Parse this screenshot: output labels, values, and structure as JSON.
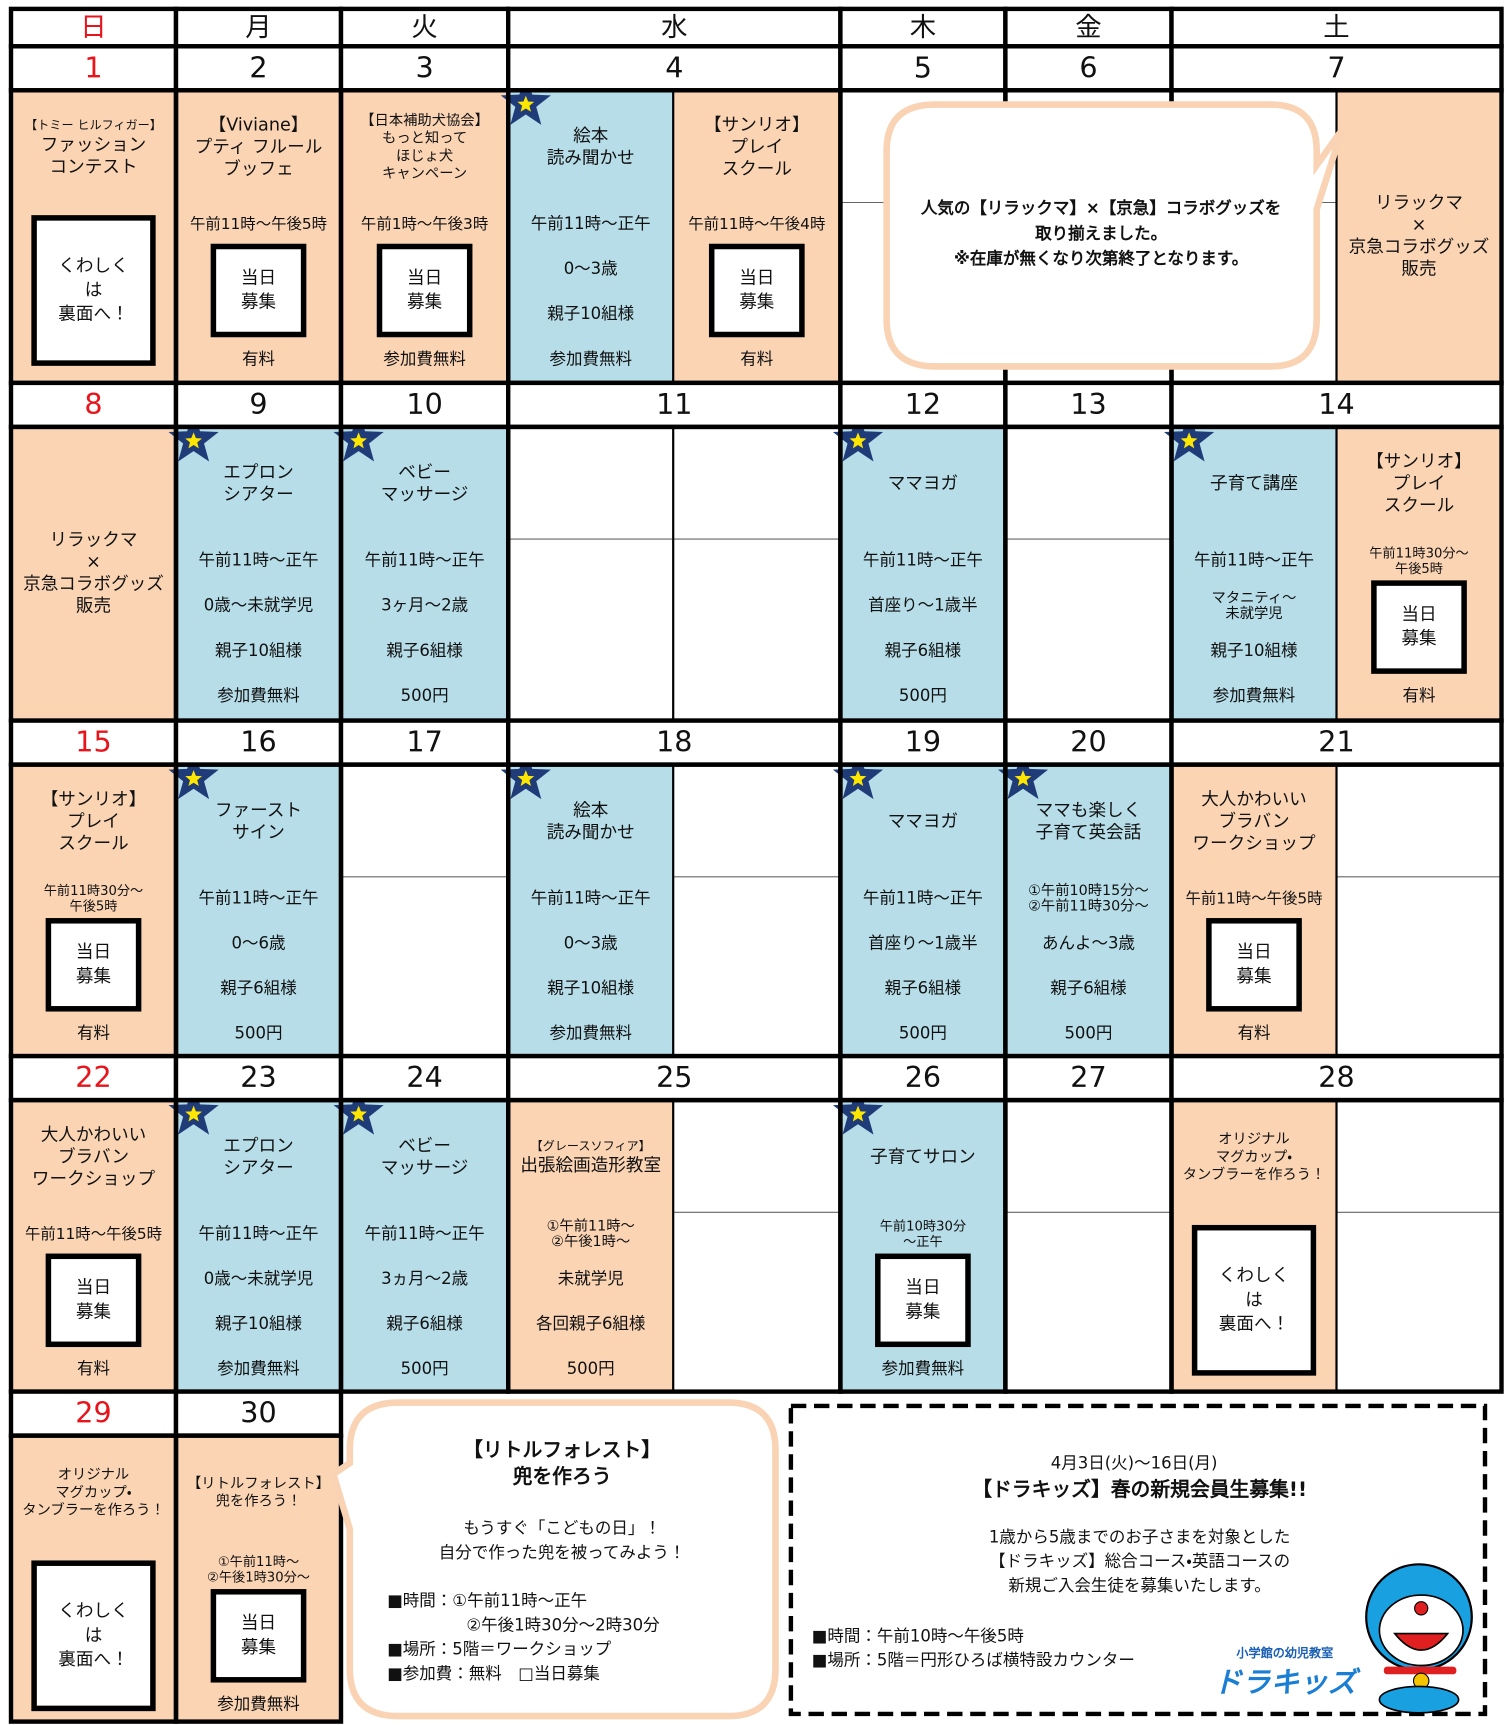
{
  "days": [
    "日",
    "月",
    "火",
    "水",
    "木",
    "金",
    "土"
  ],
  "weeks": [
    {
      "dates": [
        1,
        2,
        3,
        4,
        5,
        6,
        7
      ],
      "events": [
        {
          "slot": 0,
          "color": "#fbd4b4",
          "sub": "【トミー ヒルフィガー】",
          "title": [
            "ファッション",
            "コンテスト"
          ],
          "details": [],
          "box": [
            "くわしく",
            "は",
            "裏面へ！"
          ]
        },
        {
          "slot": 1,
          "color": "#fbd4b4",
          "title": [
            "【Viviane】",
            "プティ フルール",
            "ブッフェ"
          ],
          "details": [
            "午前11時～午後5時",
            "有料"
          ],
          "box": [
            "当日",
            "募集"
          ]
        },
        {
          "slot": 2,
          "color": "#fbd4b4",
          "small": true,
          "title": [
            "【日本補助犬協会】",
            "もっと知って",
            "ほじょ犬",
            "キャンペーン"
          ],
          "details": [
            "午前1時～午後3時",
            "参加費無料"
          ],
          "box": [
            "当日",
            "募集"
          ]
        },
        {
          "slot": 3,
          "color": "#b6dde8",
          "star": true,
          "title": [
            "絵本",
            "読み聞かせ"
          ],
          "details": [
            "午前11時～正午",
            "0～3歳",
            "親子10組様",
            "参加費無料"
          ]
        },
        {
          "slot": 4,
          "color": "#fbd4b4",
          "title": [
            "【サンリオ】",
            "プレイ",
            "スクール"
          ],
          "details": [
            "午前11時～午後4時",
            "有料"
          ],
          "box": [
            "当日",
            "募集"
          ]
        },
        {
          "slot": 8,
          "color": "#fbd4b4",
          "title": [
            "リラックマ",
            "×",
            "京急コラボグッズ",
            "販売"
          ]
        }
      ]
    },
    {
      "dates": [
        8,
        9,
        10,
        11,
        12,
        13,
        14
      ],
      "events": [
        {
          "slot": 0,
          "color": "#fbd4b4",
          "title": [
            "リラックマ",
            "×",
            "京急コラボグッズ",
            "販売"
          ]
        },
        {
          "slot": 1,
          "color": "#b6dde8",
          "star": true,
          "title": [
            "エプロン",
            "シアター"
          ],
          "details": [
            "午前11時～正午",
            "0歳～未就学児",
            "親子10組様",
            "参加費無料"
          ]
        },
        {
          "slot": 2,
          "color": "#b6dde8",
          "star": true,
          "title": [
            "ベビー",
            "マッサージ"
          ],
          "details": [
            "午前11時～正午",
            "3ヶ月～2歳",
            "親子6組様",
            "500円"
          ]
        },
        {
          "slot": 5,
          "color": "#b6dde8",
          "star": true,
          "title": [
            "ママヨガ"
          ],
          "details": [
            "午前11時～正午",
            "首座り～1歳半",
            "親子6組様",
            "500円"
          ]
        },
        {
          "slot": 7,
          "color": "#b6dde8",
          "star": true,
          "title": [
            "子育て講座"
          ],
          "details": [
            "午前11時～正午",
            [
              "マタニティ～",
              "未就学児"
            ],
            "親子10組様",
            "参加費無料"
          ]
        },
        {
          "slot": 8,
          "color": "#fbd4b4",
          "title": [
            "【サンリオ】",
            "プレイ",
            "スクール"
          ],
          "details": [
            [
              "午前11時30分～",
              "午後5時"
            ],
            "有料"
          ],
          "box": [
            "当日",
            "募集"
          ]
        }
      ]
    },
    {
      "dates": [
        15,
        16,
        17,
        18,
        19,
        20,
        21
      ],
      "events": [
        {
          "slot": 0,
          "color": "#fbd4b4",
          "title": [
            "【サンリオ】",
            "プレイ",
            "スクール"
          ],
          "details": [
            [
              "午前11時30分～",
              "午後5時"
            ],
            "有料"
          ],
          "box": [
            "当日",
            "募集"
          ]
        },
        {
          "slot": 1,
          "color": "#b6dde8",
          "star": true,
          "title": [
            "ファースト",
            "サイン"
          ],
          "details": [
            "午前11時～正午",
            "0～6歳",
            "親子6組様",
            "500円"
          ]
        },
        {
          "slot": 3,
          "color": "#b6dde8",
          "star": true,
          "title": [
            "絵本",
            "読み聞かせ"
          ],
          "details": [
            "午前11時～正午",
            "0～3歳",
            "親子10組様",
            "参加費無料"
          ]
        },
        {
          "slot": 5,
          "color": "#b6dde8",
          "star": true,
          "title": [
            "ママヨガ"
          ],
          "details": [
            "午前11時～正午",
            "首座り～1歳半",
            "親子6組様",
            "500円"
          ]
        },
        {
          "slot": 6,
          "color": "#b6dde8",
          "star": true,
          "title": [
            "ママも楽しく",
            "子育て英会話"
          ],
          "details": [
            [
              "①午前10時15分～",
              "②午前11時30分～"
            ],
            "あんよ～3歳",
            "親子6組様",
            "500円"
          ]
        },
        {
          "slot": 7,
          "color": "#fbd4b4",
          "title": [
            "大人かわいい",
            "ブラバン",
            "ワークショップ"
          ],
          "details": [
            "午前11時～午後5時",
            "有料"
          ],
          "box": [
            "当日",
            "募集"
          ]
        }
      ]
    },
    {
      "dates": [
        22,
        23,
        24,
        25,
        26,
        27,
        28
      ],
      "events": [
        {
          "slot": 0,
          "color": "#fbd4b4",
          "title": [
            "大人かわいい",
            "ブラバン",
            "ワークショップ"
          ],
          "details": [
            "午前11時～午後5時",
            "有料"
          ],
          "box": [
            "当日",
            "募集"
          ]
        },
        {
          "slot": 1,
          "color": "#b6dde8",
          "star": true,
          "title": [
            "エプロン",
            "シアター"
          ],
          "details": [
            "午前11時～正午",
            "0歳～未就学児",
            "親子10組様",
            "参加費無料"
          ]
        },
        {
          "slot": 2,
          "color": "#b6dde8",
          "star": true,
          "title": [
            "ベビー",
            "マッサージ"
          ],
          "details": [
            "午前11時～正午",
            "3ヵ月～2歳",
            "親子6組様",
            "500円"
          ]
        },
        {
          "slot": 3,
          "color": "#fbd4b4",
          "sub": "【グレースソフィア】",
          "title": [
            "出張絵画造形教室"
          ],
          "details": [
            [
              "①午前11時～",
              "②午後1時～"
            ],
            "未就学児",
            "各回親子6組様",
            "500円"
          ]
        },
        {
          "slot": 5,
          "color": "#b6dde8",
          "star": true,
          "title": [
            "子育てサロン"
          ],
          "details": [
            [
              "午前10時30分",
              "～正午"
            ],
            "参加費無料"
          ],
          "box": [
            "当日",
            "募集"
          ]
        },
        {
          "slot": 7,
          "color": "#fbd4b4",
          "small": true,
          "title": [
            "オリジナル",
            "マグカップ・",
            "タンブラーを作ろう！"
          ],
          "details": [],
          "box": [
            "くわしく",
            "は",
            "裏面へ！"
          ]
        }
      ]
    },
    {
      "dates": [
        29,
        30
      ],
      "events": [
        {
          "slot": 0,
          "color": "#fbd4b4",
          "small": true,
          "title": [
            "オリジナル",
            "マグカップ・",
            "タンブラーを作ろう！"
          ],
          "details": [],
          "box": [
            "くわしく",
            "は",
            "裏面へ！"
          ]
        },
        {
          "slot": 1,
          "color": "#fbd4b4",
          "small": true,
          "title": [
            "【リトルフォレスト】",
            "兜を作ろう！"
          ],
          "details": [
            [
              "①午前11時～",
              "②午後1時30分～"
            ],
            "参加費無料"
          ],
          "box": [
            "当日",
            "募集"
          ]
        }
      ]
    }
  ],
  "notice": [
    "人気の【リラックマ】×【京急】コラボグッズを",
    "取り揃えました。",
    "※在庫が無くなり次第終了となります。"
  ],
  "forest": {
    "title": [
      "【リトルフォレスト】",
      "兜を作ろう"
    ],
    "lines": [
      "もうすぐ「こどもの日」！",
      "自分で作った兜を被ってみよう！"
    ],
    "info": [
      "■時間：①午前11時～正午",
      "②午後1時30分～2時30分",
      "■場所：5階＝ワークショップ",
      "■参加費：無料　□当日募集"
    ]
  },
  "dorakids": {
    "period": "4月3日(火)～16日(月)",
    "title": "【ドラキッズ】春の新規会員生募集!!",
    "lines": [
      "1歳から5歳までのお子さまを対象とした",
      "【ドラキッズ】総合コース・英語コースの",
      "新規ご入会生徒を募集いたします。"
    ],
    "info": [
      "■時間：午前10時～午後5時",
      "■場所：5階＝円形ひろば横特設カウンター"
    ],
    "logo_sub": "小学館の幼児教室",
    "logo": "ドラキッズ"
  }
}
